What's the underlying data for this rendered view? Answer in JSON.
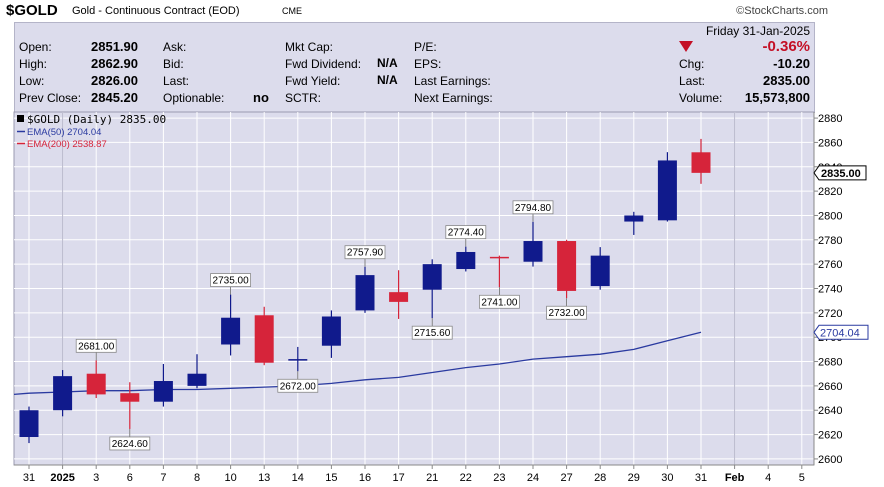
{
  "header": {
    "symbol": "$GOLD",
    "name": "Gold - Continuous Contract (EOD)",
    "exchange": "CME",
    "credit": "©StockCharts.com",
    "date": "Friday  31-Jan-2025",
    "change_pct": "-0.36%",
    "fields": {
      "open_label": "Open:",
      "open_value": "2851.90",
      "high_label": "High:",
      "high_value": "2862.90",
      "low_label": "Low:",
      "low_value": "2826.00",
      "prev_label": "Prev Close:",
      "prev_value": "2845.20",
      "ask_label": "Ask:",
      "bid_label": "Bid:",
      "last_label": "Last:",
      "optionable_label": "Optionable:",
      "optionable_value": "no",
      "mktcap_label": "Mkt Cap:",
      "fwd_div_label": "Fwd Dividend:",
      "fwd_div_value": "N/A",
      "fwd_yield_label": "Fwd Yield:",
      "fwd_yield_value": "N/A",
      "sctr_label": "SCTR:",
      "pe_label": "P/E:",
      "eps_label": "EPS:",
      "last_earnings_label": "Last Earnings:",
      "next_earnings_label": "Next Earnings:",
      "chg_label": "Chg:",
      "chg_value": "-10.20",
      "last2_label": "Last:",
      "last2_value": "2835.00",
      "volume_label": "Volume:",
      "volume_value": "15,573,800"
    }
  },
  "colors": {
    "up": "#101a8c",
    "down": "#d6243a",
    "ema50": "#2a3aa0",
    "ema200": "#d6243a",
    "plot_bg": "#dcdcec",
    "grid": "#ffffff"
  },
  "chart_data": {
    "type": "candlestick",
    "legend": [
      {
        "text": "$GOLD (Daily) 2835.00",
        "color": "#000000"
      },
      {
        "text": "EMA(50) 2704.04",
        "color": "#2a3aa0"
      },
      {
        "text": "EMA(200) 2538.87",
        "color": "#d6243a"
      }
    ],
    "x_tick_labels": [
      "31",
      "2025",
      "3",
      "6",
      "7",
      "8",
      "10",
      "13",
      "14",
      "15",
      "16",
      "17",
      "21",
      "22",
      "23",
      "24",
      "27",
      "28",
      "29",
      "30",
      "31",
      "Feb",
      "4",
      "5"
    ],
    "ylim": [
      2595,
      2885
    ],
    "y_ticks": [
      2600,
      2620,
      2640,
      2660,
      2680,
      2700,
      2720,
      2740,
      2760,
      2780,
      2800,
      2820,
      2840,
      2860,
      2880
    ],
    "price_tags": [
      {
        "text": "2835.00",
        "value": 2835.0,
        "style": "boxed"
      },
      {
        "text": "2704.04",
        "value": 2704.04,
        "style": "arrow"
      }
    ],
    "candles": [
      {
        "date": "2024-12-31",
        "open": 2618,
        "high": 2643,
        "low": 2613,
        "close": 2640
      },
      {
        "date": "2025-01-02",
        "open": 2640,
        "high": 2673,
        "low": 2635,
        "close": 2668
      },
      {
        "date": "2025-01-03",
        "open": 2670,
        "high": 2681,
        "low": 2650,
        "close": 2653
      },
      {
        "date": "2025-01-06",
        "open": 2654,
        "high": 2663,
        "low": 2624.6,
        "close": 2647
      },
      {
        "date": "2025-01-07",
        "open": 2647,
        "high": 2678,
        "low": 2643,
        "close": 2664
      },
      {
        "date": "2025-01-08",
        "open": 2660,
        "high": 2686,
        "low": 2658,
        "close": 2670
      },
      {
        "date": "2025-01-10",
        "open": 2694,
        "high": 2735,
        "low": 2685,
        "close": 2716
      },
      {
        "date": "2025-01-13",
        "open": 2718,
        "high": 2725,
        "low": 2677,
        "close": 2679
      },
      {
        "date": "2025-01-14",
        "open": 2681,
        "high": 2692,
        "low": 2672,
        "close": 2682
      },
      {
        "date": "2025-01-15",
        "open": 2693,
        "high": 2722,
        "low": 2683,
        "close": 2717
      },
      {
        "date": "2025-01-16",
        "open": 2722,
        "high": 2757.9,
        "low": 2720,
        "close": 2751
      },
      {
        "date": "2025-01-17",
        "open": 2737,
        "high": 2755,
        "low": 2715,
        "close": 2729
      },
      {
        "date": "2025-01-21",
        "open": 2739,
        "high": 2764,
        "low": 2715.6,
        "close": 2760
      },
      {
        "date": "2025-01-22",
        "open": 2756,
        "high": 2774.4,
        "low": 2754,
        "close": 2770
      },
      {
        "date": "2025-01-23",
        "open": 2766,
        "high": 2767,
        "low": 2741,
        "close": 2765
      },
      {
        "date": "2025-01-24",
        "open": 2762,
        "high": 2794.8,
        "low": 2758,
        "close": 2779
      },
      {
        "date": "2025-01-27",
        "open": 2779,
        "high": 2780,
        "low": 2732,
        "close": 2738
      },
      {
        "date": "2025-01-28",
        "open": 2742,
        "high": 2774,
        "low": 2739,
        "close": 2767
      },
      {
        "date": "2025-01-29",
        "open": 2795,
        "high": 2803,
        "low": 2784,
        "close": 2800
      },
      {
        "date": "2025-01-30",
        "open": 2796,
        "high": 2852,
        "low": 2795,
        "close": 2845.2
      },
      {
        "date": "2025-01-31",
        "open": 2851.9,
        "high": 2862.9,
        "low": 2826,
        "close": 2835
      }
    ],
    "ema50": [
      [
        "2024-12-31",
        2654
      ],
      [
        "2025-01-02",
        2655
      ],
      [
        "2025-01-03",
        2656
      ],
      [
        "2025-01-06",
        2656
      ],
      [
        "2025-01-07",
        2657
      ],
      [
        "2025-01-08",
        2657
      ],
      [
        "2025-01-10",
        2658
      ],
      [
        "2025-01-13",
        2659
      ],
      [
        "2025-01-14",
        2660
      ],
      [
        "2025-01-15",
        2662
      ],
      [
        "2025-01-16",
        2665
      ],
      [
        "2025-01-17",
        2667
      ],
      [
        "2025-01-21",
        2671
      ],
      [
        "2025-01-22",
        2675
      ],
      [
        "2025-01-23",
        2678
      ],
      [
        "2025-01-24",
        2682
      ],
      [
        "2025-01-27",
        2684
      ],
      [
        "2025-01-28",
        2686
      ],
      [
        "2025-01-29",
        2690
      ],
      [
        "2025-01-30",
        2697
      ],
      [
        "2025-01-31",
        2704.04
      ]
    ],
    "annotations": [
      {
        "text": "2681.00",
        "date": "2025-01-03",
        "value": 2681,
        "pos": "above"
      },
      {
        "text": "2624.60",
        "date": "2025-01-06",
        "value": 2624.6,
        "pos": "below"
      },
      {
        "text": "2735.00",
        "date": "2025-01-10",
        "value": 2735,
        "pos": "above"
      },
      {
        "text": "2672.00",
        "date": "2025-01-14",
        "value": 2672,
        "pos": "below"
      },
      {
        "text": "2757.90",
        "date": "2025-01-16",
        "value": 2757.9,
        "pos": "above"
      },
      {
        "text": "2715.60",
        "date": "2025-01-21",
        "value": 2715.6,
        "pos": "below"
      },
      {
        "text": "2774.40",
        "date": "2025-01-22",
        "value": 2774.4,
        "pos": "above"
      },
      {
        "text": "2741.00",
        "date": "2025-01-23",
        "value": 2741,
        "pos": "below"
      },
      {
        "text": "2794.80",
        "date": "2025-01-24",
        "value": 2794.8,
        "pos": "above"
      },
      {
        "text": "2732.00",
        "date": "2025-01-27",
        "value": 2732,
        "pos": "below"
      }
    ]
  }
}
